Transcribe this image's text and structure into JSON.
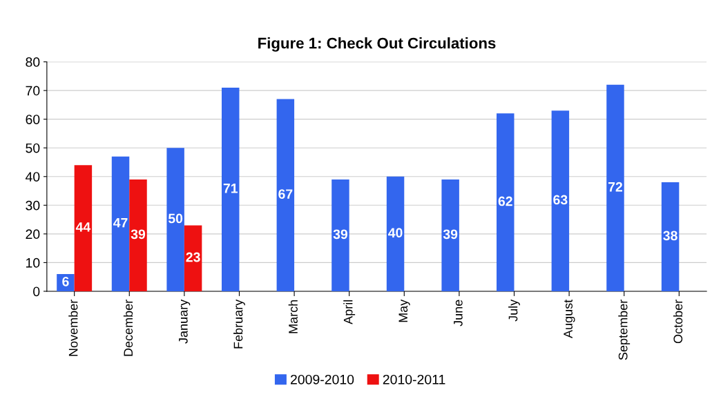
{
  "chart_data": {
    "type": "bar",
    "title": "Figure 1: Check Out Circulations",
    "categories": [
      "November",
      "December",
      "January",
      "February",
      "March",
      "April",
      "May",
      "June",
      "July",
      "August",
      "September",
      "October"
    ],
    "series": [
      {
        "name": "2009-2010",
        "color": "#3366ee",
        "values": [
          6,
          47,
          50,
          71,
          67,
          39,
          40,
          39,
          62,
          63,
          72,
          38
        ]
      },
      {
        "name": "2010-2011",
        "color": "#ee1111",
        "values": [
          44,
          39,
          23,
          null,
          null,
          null,
          null,
          null,
          null,
          null,
          null,
          null
        ]
      }
    ],
    "ylim": [
      0,
      80
    ],
    "yticks": [
      0,
      10,
      20,
      30,
      40,
      50,
      60,
      70,
      80
    ],
    "grid": "y",
    "legend": "bottom",
    "data_labels": true
  }
}
